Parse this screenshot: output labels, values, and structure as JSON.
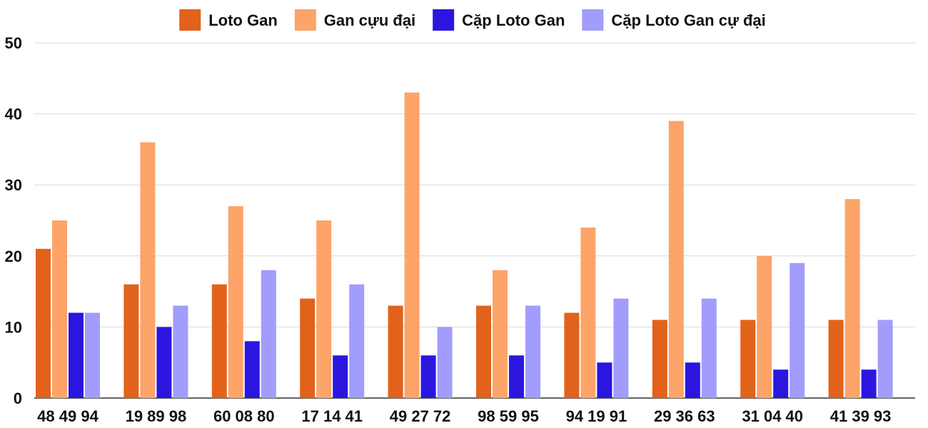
{
  "chart_data": {
    "type": "bar",
    "title": "",
    "xlabel": "",
    "ylabel": "",
    "ylim": [
      0,
      50
    ],
    "yticks": [
      0,
      10,
      20,
      30,
      40,
      50
    ],
    "ytick_labels": [
      "0",
      "10",
      "20",
      "30",
      "40",
      "50"
    ],
    "grid": true,
    "legend_position": "top-center",
    "categories": [
      "48 49 94",
      "19 89 98",
      "60 08 80",
      "17 14 41",
      "49 27 72",
      "98 59 95",
      "94 19 91",
      "29 36 63",
      "31 04 40",
      "41 39 93"
    ],
    "series": [
      {
        "name": "Loto Gan",
        "color": "#e2621b",
        "values": [
          21,
          16,
          16,
          14,
          13,
          13,
          12,
          11,
          11,
          11
        ]
      },
      {
        "name": "Gan cựu đại",
        "color": "#fda468",
        "values": [
          25,
          36,
          27,
          25,
          43,
          18,
          24,
          39,
          20,
          28
        ]
      },
      {
        "name": "Cặp Loto Gan",
        "color": "#2b16e0",
        "values": [
          12,
          10,
          8,
          6,
          6,
          6,
          5,
          5,
          4,
          4
        ]
      },
      {
        "name": "Cặp Loto Gan cự đại",
        "color": "#a29cfc",
        "values": [
          12,
          13,
          18,
          16,
          10,
          13,
          14,
          14,
          19,
          11
        ]
      }
    ]
  }
}
